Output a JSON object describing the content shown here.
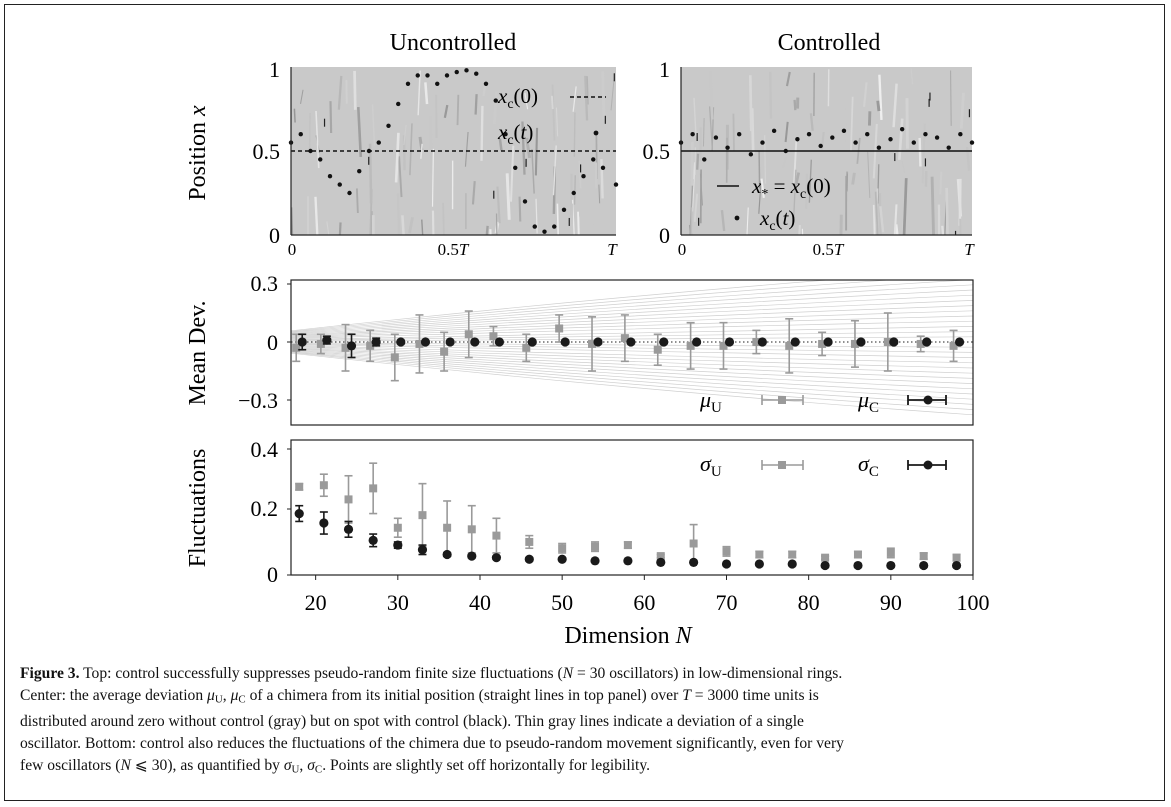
{
  "figure": {
    "panel_titles": [
      "Uncontrolled",
      "Controlled"
    ],
    "top_panels": {
      "ylabel": "Position x",
      "y_ticks": [
        "0",
        "0.5",
        "1"
      ],
      "x_ticks": [
        "0",
        "0.5T",
        "T"
      ],
      "legend_uncontrolled": [
        "xc(0)",
        "xc(t)"
      ],
      "legend_controlled": [
        "x* = xc(0)",
        "xc(t)"
      ]
    },
    "mean_panel": {
      "ylabel": "Mean Dev.",
      "y_ticks": [
        "0.3",
        "0",
        "−0.3"
      ],
      "legend": [
        "μU",
        "μC"
      ]
    },
    "fluct_panel": {
      "ylabel": "Fluctuations",
      "y_ticks": [
        "0.4",
        "0.2",
        "0"
      ],
      "x_ticks": [
        "20",
        "30",
        "40",
        "50",
        "60",
        "70",
        "80",
        "90",
        "100"
      ],
      "xlabel": "Dimension N",
      "legend": [
        "σU",
        "σC"
      ]
    }
  },
  "chart_data": [
    {
      "type": "scatter",
      "title": "Uncontrolled",
      "ylabel": "Position x",
      "xlim": [
        0,
        1
      ],
      "ylim": [
        0,
        1
      ],
      "x_unit": "T",
      "reference_line": 0.5,
      "series": [
        {
          "name": "xc(t)",
          "x": [
            0.0,
            0.03,
            0.06,
            0.09,
            0.12,
            0.15,
            0.18,
            0.21,
            0.24,
            0.27,
            0.3,
            0.33,
            0.36,
            0.39,
            0.42,
            0.45,
            0.48,
            0.51,
            0.54,
            0.57,
            0.6,
            0.63,
            0.66,
            0.69,
            0.72,
            0.75,
            0.78,
            0.81,
            0.84,
            0.87,
            0.9,
            0.93,
            0.96,
            1.0
          ],
          "y": [
            0.55,
            0.6,
            0.5,
            0.45,
            0.35,
            0.3,
            0.25,
            0.38,
            0.5,
            0.55,
            0.65,
            0.78,
            0.9,
            0.95,
            0.95,
            0.9,
            0.95,
            0.97,
            0.98,
            0.96,
            0.9,
            0.8,
            0.6,
            0.4,
            0.2,
            0.05,
            0.02,
            0.05,
            0.15,
            0.25,
            0.35,
            0.45,
            0.4,
            0.3
          ]
        }
      ]
    },
    {
      "type": "scatter",
      "title": "Controlled",
      "ylabel": "Position x",
      "xlim": [
        0,
        1
      ],
      "ylim": [
        0,
        1
      ],
      "x_unit": "T",
      "reference_line": 0.5,
      "series": [
        {
          "name": "xc(t)",
          "x": [
            0.0,
            0.04,
            0.08,
            0.12,
            0.16,
            0.2,
            0.24,
            0.28,
            0.32,
            0.36,
            0.4,
            0.44,
            0.48,
            0.52,
            0.56,
            0.6,
            0.64,
            0.68,
            0.72,
            0.76,
            0.8,
            0.84,
            0.88,
            0.92,
            0.96,
            1.0
          ],
          "y": [
            0.55,
            0.6,
            0.45,
            0.58,
            0.52,
            0.6,
            0.48,
            0.55,
            0.62,
            0.5,
            0.57,
            0.6,
            0.53,
            0.58,
            0.62,
            0.55,
            0.6,
            0.52,
            0.57,
            0.63,
            0.55,
            0.6,
            0.58,
            0.52,
            0.6,
            0.55
          ]
        }
      ]
    },
    {
      "type": "scatter",
      "ylabel": "Mean Dev.",
      "xlabel": "Dimension N",
      "xlim": [
        17,
        100
      ],
      "ylim": [
        -0.35,
        0.3
      ],
      "series": [
        {
          "name": "μU",
          "x": [
            18,
            21,
            24,
            27,
            30,
            33,
            36,
            39,
            42,
            46,
            50,
            54,
            58,
            62,
            66,
            70,
            74,
            78,
            82,
            86,
            90,
            94,
            98
          ],
          "y": [
            -0.03,
            -0.01,
            -0.03,
            -0.02,
            -0.08,
            -0.01,
            -0.05,
            0.04,
            0.03,
            -0.03,
            0.07,
            -0.01,
            0.02,
            -0.04,
            -0.02,
            -0.02,
            0.0,
            -0.02,
            -0.01,
            -0.01,
            0.0,
            -0.01,
            -0.02
          ],
          "err": [
            0.07,
            0.05,
            0.12,
            0.08,
            0.12,
            0.15,
            0.1,
            0.12,
            0.05,
            0.07,
            0.07,
            0.14,
            0.12,
            0.08,
            0.12,
            0.12,
            0.06,
            0.14,
            0.06,
            0.12,
            0.15,
            0.04,
            0.08
          ]
        },
        {
          "name": "μC",
          "x": [
            18,
            21,
            24,
            27,
            30,
            33,
            36,
            39,
            42,
            46,
            50,
            54,
            58,
            62,
            66,
            70,
            74,
            78,
            82,
            86,
            90,
            94,
            98
          ],
          "y": [
            0.0,
            0.01,
            -0.02,
            0.0,
            0.0,
            0.0,
            0.0,
            0.0,
            0.0,
            0.0,
            0.0,
            0.0,
            0.0,
            0.0,
            0.0,
            0.0,
            0.0,
            0.0,
            0.0,
            0.0,
            0.0,
            0.0,
            0.0
          ],
          "err": [
            0.04,
            0.02,
            0.06,
            0.02,
            0.0,
            0.0,
            0.0,
            0.0,
            0.0,
            0.0,
            0.0,
            0.0,
            0.0,
            0.0,
            0.0,
            0.0,
            0.0,
            0.0,
            0.0,
            0.0,
            0.0,
            0.0,
            0.0
          ]
        }
      ]
    },
    {
      "type": "scatter",
      "ylabel": "Fluctuations",
      "xlabel": "Dimension N",
      "xlim": [
        17,
        100
      ],
      "ylim": [
        0,
        0.4
      ],
      "series": [
        {
          "name": "σU",
          "x": [
            18,
            21,
            24,
            27,
            30,
            33,
            36,
            39,
            42,
            46,
            50,
            54,
            58,
            62,
            66,
            70,
            74,
            78,
            82,
            86,
            90,
            94,
            98
          ],
          "y": [
            0.28,
            0.285,
            0.24,
            0.275,
            0.15,
            0.19,
            0.15,
            0.145,
            0.125,
            0.105,
            0.085,
            0.09,
            0.095,
            0.06,
            0.1,
            0.075,
            0.065,
            0.065,
            0.055,
            0.065,
            0.07,
            0.06,
            0.055
          ],
          "err": [
            0.01,
            0.035,
            0.075,
            0.08,
            0.03,
            0.1,
            0.085,
            0.075,
            0.055,
            0.02,
            0.015,
            0.015,
            0.01,
            0.005,
            0.06,
            0.015,
            0.01,
            0.01,
            0.005,
            0.01,
            0.015,
            0.01,
            0.01
          ]
        },
        {
          "name": "σC",
          "x": [
            18,
            21,
            24,
            27,
            30,
            33,
            36,
            39,
            42,
            46,
            50,
            54,
            58,
            62,
            66,
            70,
            74,
            78,
            82,
            86,
            90,
            94,
            98
          ],
          "y": [
            0.195,
            0.165,
            0.145,
            0.11,
            0.095,
            0.08,
            0.065,
            0.06,
            0.055,
            0.05,
            0.05,
            0.045,
            0.045,
            0.04,
            0.04,
            0.035,
            0.035,
            0.035,
            0.03,
            0.03,
            0.03,
            0.03,
            0.03
          ],
          "err": [
            0.025,
            0.035,
            0.025,
            0.02,
            0.01,
            0.015,
            0.005,
            0.005,
            0.005,
            0.005,
            0.0,
            0.0,
            0.0,
            0.0,
            0.0,
            0.0,
            0.0,
            0.0,
            0.0,
            0.0,
            0.0,
            0.0,
            0.0
          ]
        }
      ]
    }
  ],
  "caption": {
    "label": "Figure 3.",
    "lines": [
      "Top: control successfully suppresses pseudo-random finite size fluctuations (N = 30 oscillators) in low-dimensional rings.",
      "Center: the average deviation μU, μC of a chimera from its initial position (straight lines in top panel) over T = 3000 time units is",
      "distributed around zero without control (gray) but on spot with control (black). Thin gray lines indicate a deviation of a single",
      "oscillator. Bottom: control also reduces the fluctuations of the chimera due to pseudo-random movement significantly, even for very",
      "few oscillators (N ⩽ 30), as quantified by σU, σC. Points are slightly set off horizontally for legibility."
    ]
  },
  "colors": {
    "gray": "#9a9a9a",
    "black": "#1a1a1a",
    "texture": "#b8b8b8"
  }
}
